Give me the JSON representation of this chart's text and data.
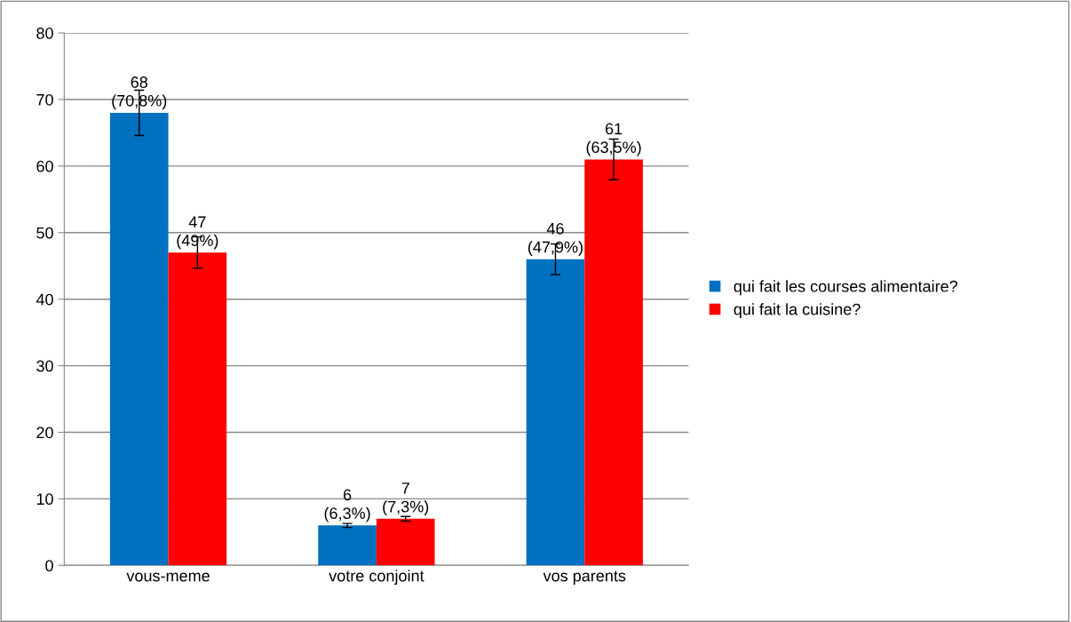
{
  "chart_data": {
    "type": "bar",
    "categories": [
      "vous-meme",
      "votre conjoint",
      "vos parents"
    ],
    "series": [
      {
        "name": "qui fait les courses alimentaire?",
        "color": "#0070c0",
        "values": [
          68,
          6,
          46
        ],
        "errors": [
          3.4,
          0.3,
          2.3
        ],
        "value_labels": [
          "68\n(70,8%)",
          "6\n(6,3%)",
          "46\n(47,9%)"
        ]
      },
      {
        "name": "qui fait la cuisine?",
        "color": "#ff0000",
        "values": [
          47,
          7,
          61
        ],
        "errors": [
          2.35,
          0.35,
          3.05
        ],
        "value_labels": [
          "47\n(49%)",
          "7\n(7,3%)",
          "61\n(63,5%)"
        ]
      }
    ],
    "ylim": [
      0,
      80
    ],
    "yticks": [
      0,
      10,
      20,
      30,
      40,
      50,
      60,
      70,
      80
    ],
    "grid": "y",
    "legend": "right"
  }
}
